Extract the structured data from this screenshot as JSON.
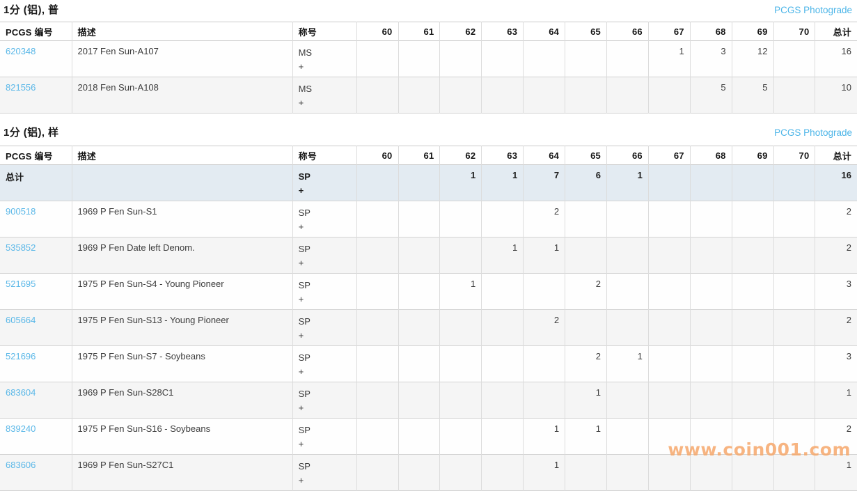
{
  "colors": {
    "link_blue": "#4cb5e8",
    "pcgs_number_blue": "#5bb8e8",
    "total_row_background": "#e3ebf2",
    "alt_row_background": "#f5f5f5",
    "watermark_orange": "#f6a566"
  },
  "headers": {
    "number": "PCGS 编号",
    "description": "描述",
    "designation": "称号"
  },
  "grade_columns": [
    "60",
    "61",
    "62",
    "63",
    "64",
    "65",
    "66",
    "67",
    "68",
    "69",
    "70",
    "总计"
  ],
  "sections": [
    {
      "title": "1分 (铝), 普",
      "link": "PCGS Photograde",
      "total_row": null,
      "rows": [
        {
          "number": "620348",
          "description": "2017 Fen Sun-A107",
          "designation": "MS\n+",
          "grades": {
            "67": "1",
            "68": "3",
            "69": "12"
          },
          "total": "16"
        },
        {
          "number": "821556",
          "description": "2018 Fen Sun-A108",
          "designation": "MS\n+",
          "grades": {
            "68": "5",
            "69": "5"
          },
          "total": "10"
        }
      ]
    },
    {
      "title": "1分 (铝), 样",
      "link": "PCGS Photograde",
      "total_row": {
        "label": "总计",
        "designation": "SP\n+",
        "grades": {
          "62": "1",
          "63": "1",
          "64": "7",
          "65": "6",
          "66": "1"
        },
        "total": "16"
      },
      "rows": [
        {
          "number": "900518",
          "description": "1969 P Fen Sun-S1",
          "designation": "SP\n+",
          "grades": {
            "64": "2"
          },
          "total": "2"
        },
        {
          "number": "535852",
          "description": "1969 P Fen Date left Denom.",
          "designation": "SP\n+",
          "grades": {
            "63": "1",
            "64": "1"
          },
          "total": "2"
        },
        {
          "number": "521695",
          "description": "1975 P Fen Sun-S4 - Young Pioneer",
          "designation": "SP\n+",
          "grades": {
            "62": "1",
            "65": "2"
          },
          "total": "3"
        },
        {
          "number": "605664",
          "description": "1975 P Fen Sun-S13 - Young Pioneer",
          "designation": "SP\n+",
          "grades": {
            "64": "2"
          },
          "total": "2"
        },
        {
          "number": "521696",
          "description": "1975 P Fen Sun-S7 - Soybeans",
          "designation": "SP\n+",
          "grades": {
            "65": "2",
            "66": "1"
          },
          "total": "3"
        },
        {
          "number": "683604",
          "description": "1969 P Fen Sun-S28C1",
          "designation": "SP\n+",
          "grades": {
            "65": "1"
          },
          "total": "1"
        },
        {
          "number": "839240",
          "description": "1975 P Fen Sun-S16 - Soybeans",
          "designation": "SP\n+",
          "grades": {
            "64": "1",
            "65": "1"
          },
          "total": "2"
        },
        {
          "number": "683606",
          "description": "1969 P Fen Sun-S27C1",
          "designation": "SP\n+",
          "grades": {
            "64": "1"
          },
          "total": "1"
        }
      ]
    }
  ],
  "watermark": "www.coin001.com"
}
